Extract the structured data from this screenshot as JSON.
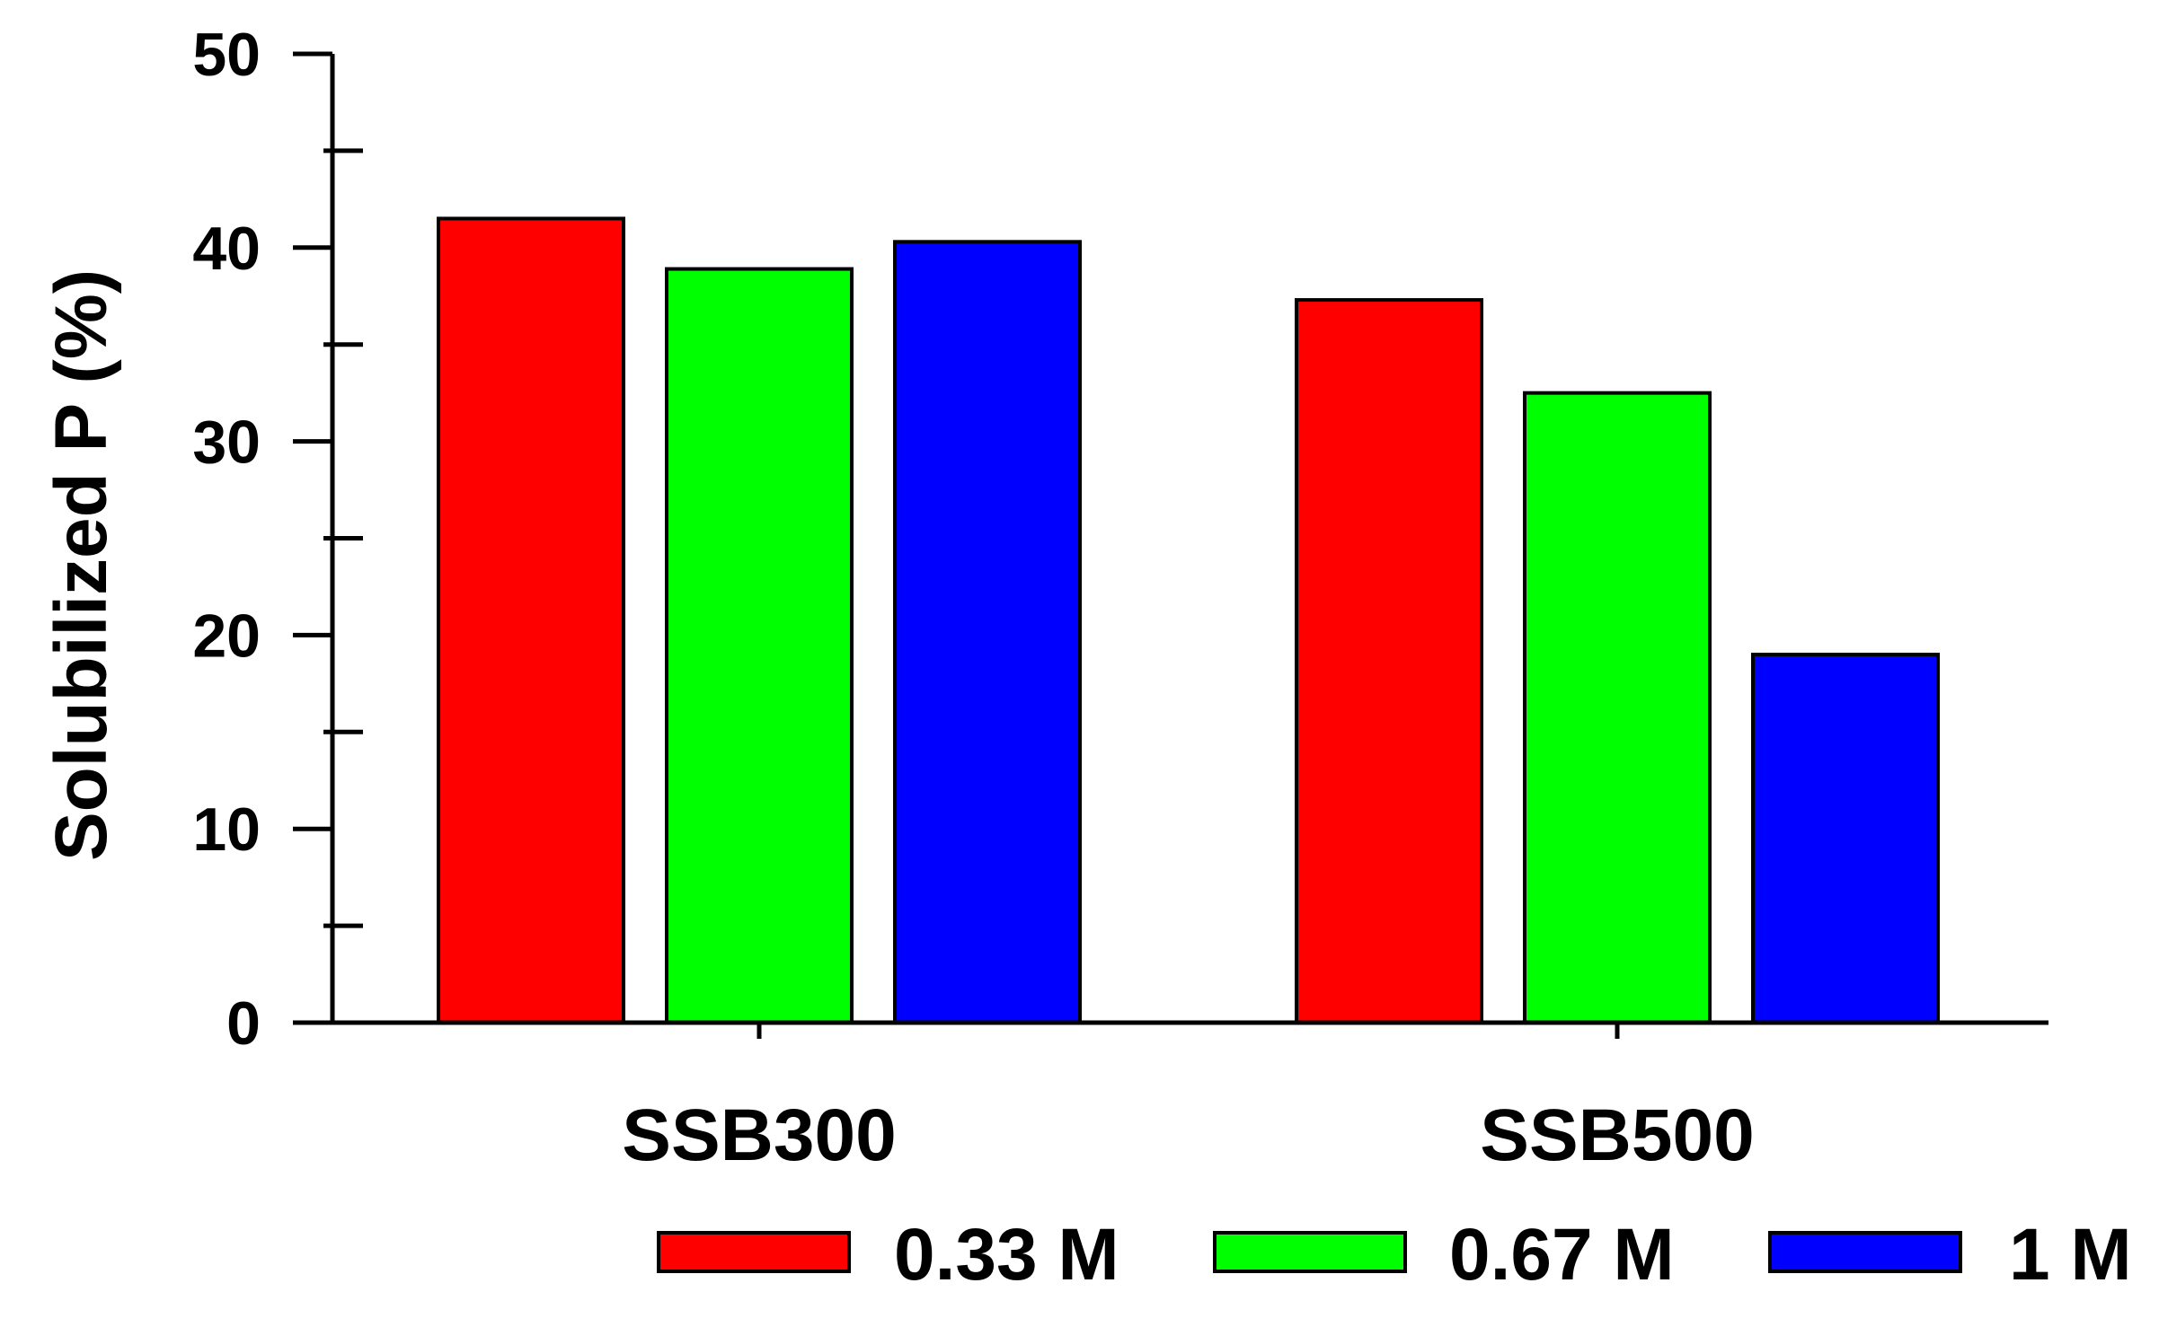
{
  "chart_data": {
    "type": "bar",
    "title": "",
    "xlabel": "",
    "ylabel": "Solubilized P (%)",
    "ylim": [
      0,
      50
    ],
    "y_ticks": [
      0,
      10,
      20,
      30,
      40,
      50
    ],
    "y_minor_ticks": [
      5,
      15,
      25,
      35,
      45
    ],
    "grid": false,
    "legend_position": "bottom-right",
    "categories": [
      "SSB300",
      "SSB500"
    ],
    "series": [
      {
        "name": "0.33 M",
        "color": "#ff0000",
        "values": [
          41.5,
          37.3
        ]
      },
      {
        "name": "0.67 M",
        "color": "#00ff00",
        "values": [
          38.9,
          32.5
        ]
      },
      {
        "name": "1 M",
        "color": "#0000ff",
        "values": [
          40.3,
          19.0
        ]
      }
    ]
  }
}
